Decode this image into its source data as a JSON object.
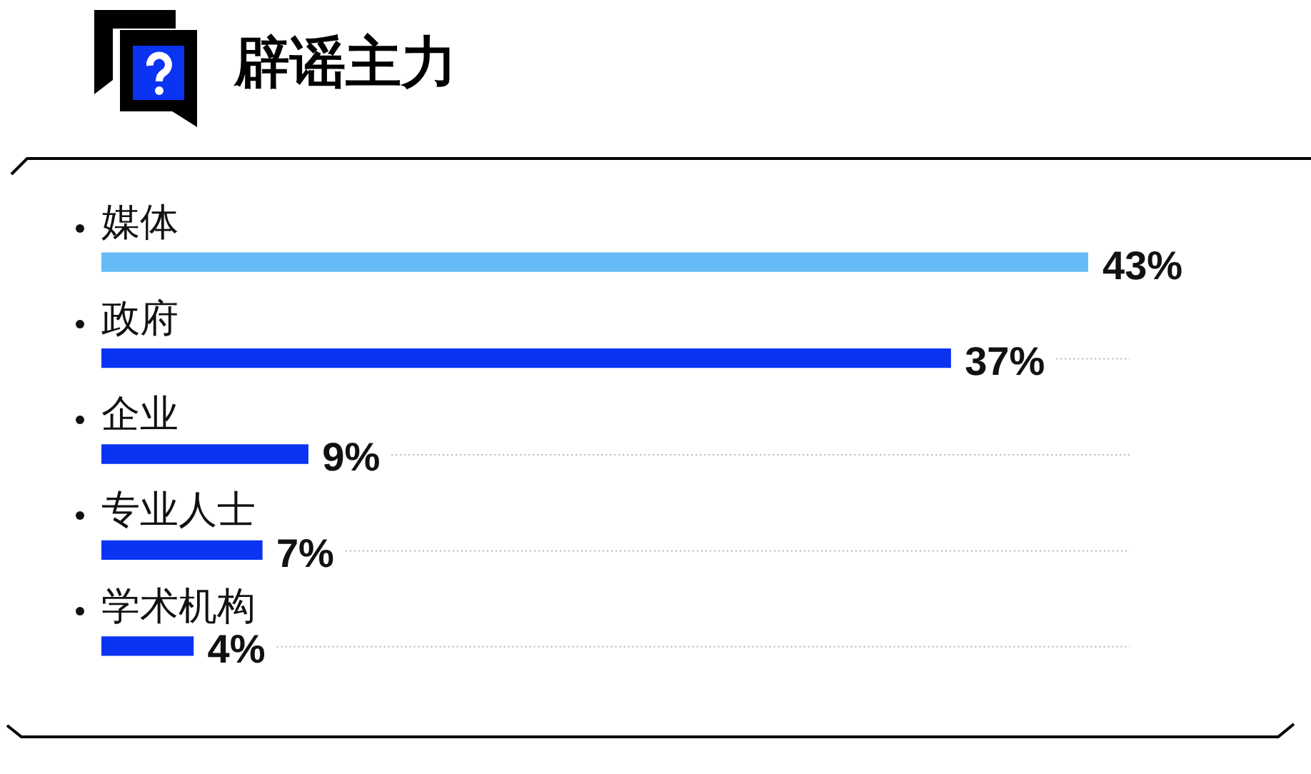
{
  "chart_data": {
    "type": "bar",
    "orientation": "horizontal",
    "title": "辟谣主力",
    "categories": [
      "媒体",
      "政府",
      "企业",
      "专业人士",
      "学术机构"
    ],
    "values": [
      43,
      37,
      9,
      7,
      4
    ],
    "colors": [
      "#66bbf7",
      "#0a33f2",
      "#0a33f2",
      "#0a33f2",
      "#0a33f2"
    ],
    "value_labels": [
      "43%",
      "37%",
      "9%",
      "7%",
      "4%"
    ]
  }
}
